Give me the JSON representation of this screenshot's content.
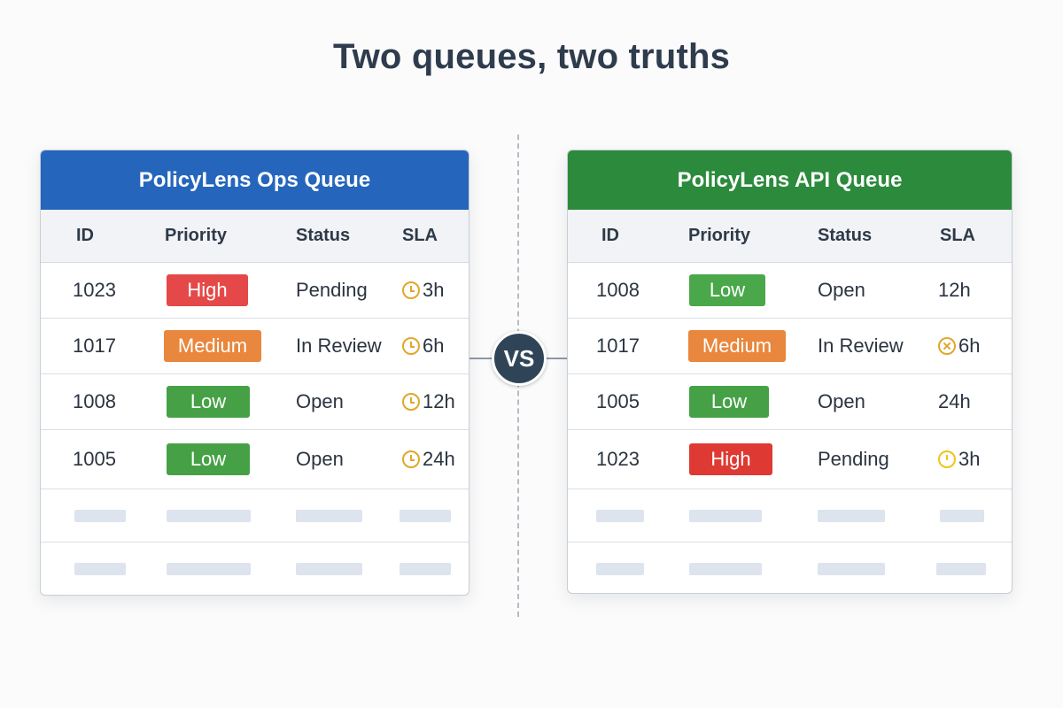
{
  "title": "Two queues, two truths",
  "vs_label": "VS",
  "colors": {
    "ops_header": "#2566bc",
    "api_header": "#2c8a3c",
    "high": "#e54848",
    "medium": "#e8873d",
    "low": "#46a146",
    "clock": "#e0a82a"
  },
  "ops_queue": {
    "header": "PolicyLens Ops Queue",
    "columns": [
      "ID",
      "Priority",
      "Status",
      "SLA"
    ],
    "rows": [
      {
        "id": "1023",
        "priority": "High",
        "status": "Pending",
        "sla": "3h",
        "icon": "clock-icon"
      },
      {
        "id": "1017",
        "priority": "Medium",
        "status": "In Review",
        "sla": "6h",
        "icon": "clock-icon"
      },
      {
        "id": "1008",
        "priority": "Low",
        "status": "Open",
        "sla": "12h",
        "icon": "clock-icon"
      },
      {
        "id": "1005",
        "priority": "Low",
        "status": "Open",
        "sla": "24h",
        "icon": "clock-icon"
      }
    ]
  },
  "api_queue": {
    "header": "PolicyLens API Queue",
    "columns": [
      "ID",
      "Priority",
      "Status",
      "SLA"
    ],
    "rows": [
      {
        "id": "1008",
        "priority": "Low",
        "status": "Open",
        "sla": "12h",
        "icon": ""
      },
      {
        "id": "1017",
        "priority": "Medium",
        "status": "In Review",
        "sla": "6h",
        "icon": "clock-x-icon"
      },
      {
        "id": "1005",
        "priority": "Low",
        "status": "Open",
        "sla": "24h",
        "icon": ""
      },
      {
        "id": "1023",
        "priority": "High",
        "status": "Pending",
        "sla": "3h",
        "icon": "clock-icon"
      }
    ]
  }
}
